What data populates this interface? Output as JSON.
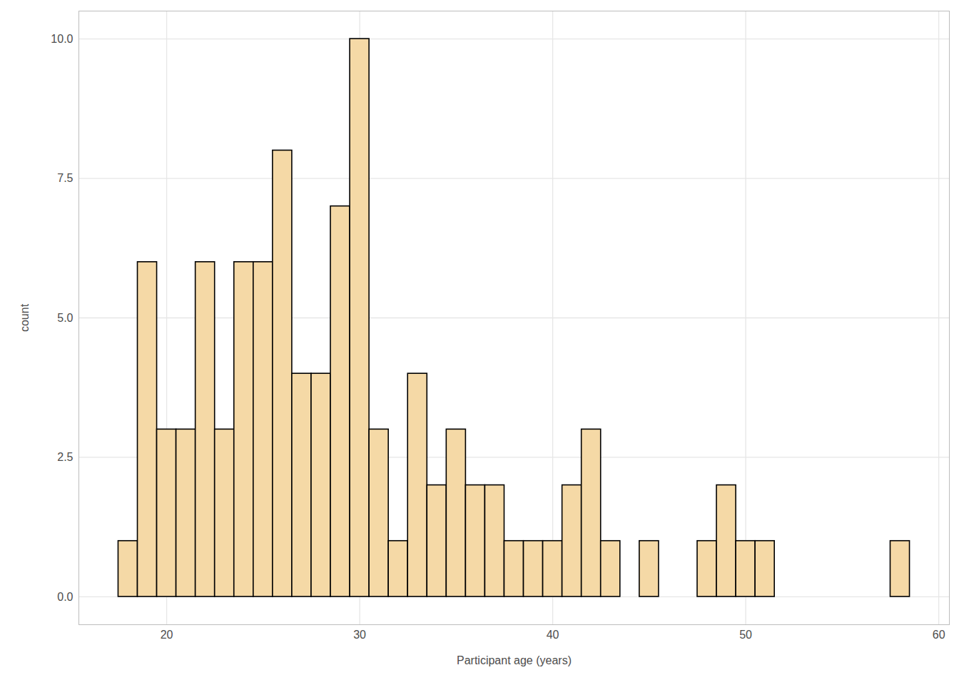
{
  "chart_data": {
    "type": "histogram",
    "xlabel": "Participant age (years)",
    "ylabel": "count",
    "bins": [
      17.5,
      18.5,
      19.5,
      20.5,
      21.5,
      22.5,
      23.5,
      24.5,
      25.5,
      26.5,
      27.5,
      28.5,
      29.5,
      30.5,
      31.5,
      32.5,
      33.5,
      34.5,
      35.5,
      36.5,
      37.5,
      38.5,
      39.5,
      40.5,
      41.5,
      42.5,
      43.5,
      44.5,
      45.5,
      46.5,
      47.5,
      48.5,
      49.5,
      50.5,
      51.5,
      52.5,
      53.5,
      54.5,
      55.5,
      56.5,
      57.5,
      58.5
    ],
    "values": [
      1,
      6,
      3,
      3,
      6,
      3,
      6,
      6,
      8,
      4,
      4,
      7,
      10,
      3,
      1,
      4,
      2,
      3,
      2,
      2,
      1,
      1,
      1,
      2,
      3,
      1,
      0,
      1,
      0,
      0,
      1,
      2,
      1,
      1,
      0,
      0,
      0,
      0,
      0,
      0,
      1
    ],
    "color": "#f5d9a6",
    "xlim": [
      15.45,
      60.55
    ],
    "xticks": [
      20,
      30,
      40,
      50,
      60
    ],
    "ylim": [
      -0.5,
      10.5
    ],
    "yticks": [
      {
        "value": 0,
        "label": "0.0"
      },
      {
        "value": 2.5,
        "label": "2.5"
      },
      {
        "value": 5,
        "label": "5.0"
      },
      {
        "value": 7.5,
        "label": "7.5"
      },
      {
        "value": 10,
        "label": "10.0"
      }
    ],
    "grid": true
  }
}
